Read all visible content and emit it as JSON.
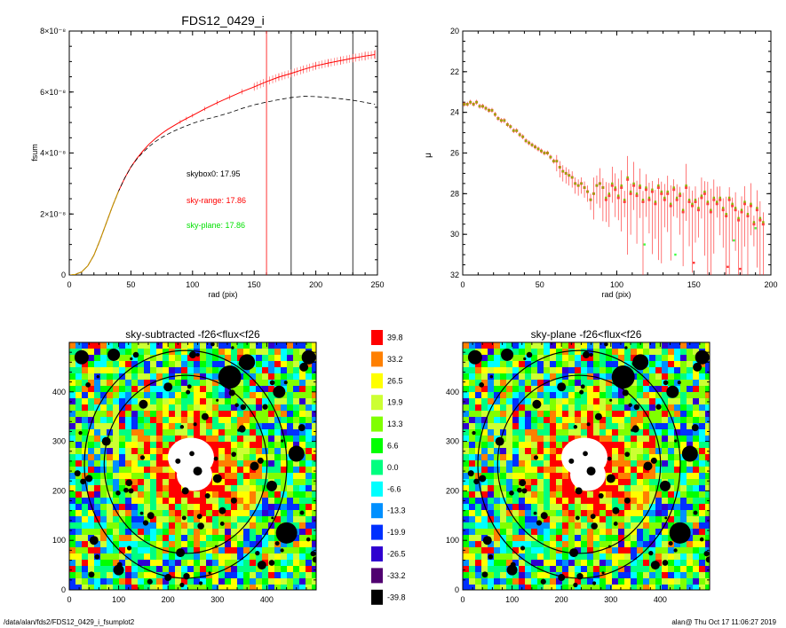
{
  "chart_data": [
    {
      "type": "line",
      "title": "FDS12_0429_i",
      "xlabel": "rad (pix)",
      "ylabel": "fsum",
      "xlim": [
        0,
        250
      ],
      "ylim": [
        0,
        8e-08
      ],
      "x_ticks": [
        "0",
        "50",
        "100",
        "150",
        "200",
        "250"
      ],
      "y_ticks": [
        "0",
        "2×10⁻⁸",
        "4×10⁻⁸",
        "6×10⁻⁸",
        "8×10⁻⁸"
      ],
      "x": [
        1,
        5,
        10,
        15,
        20,
        25,
        30,
        35,
        40,
        45,
        50,
        55,
        60,
        65,
        70,
        75,
        80,
        85,
        90,
        95,
        100,
        110,
        120,
        130,
        140,
        150,
        160,
        170,
        180,
        190,
        200,
        210,
        220,
        230,
        240,
        248
      ],
      "series": [
        {
          "values": [
            0,
            0.2,
            1.0,
            3.0,
            6.5,
            11.5,
            17,
            22.5,
            27.5,
            31.8,
            35.4,
            38.3,
            40.8,
            43.0,
            44.8,
            46.4,
            47.8,
            49.0,
            50.2,
            51.3,
            52.3,
            54.5,
            56.5,
            58.3,
            60.1,
            61.7,
            63.4,
            64.9,
            66.1,
            67.4,
            68.6,
            69.5,
            70.3,
            71.1,
            71.8,
            72.3
          ],
          "color": "#ff0000",
          "style": "solid",
          "error_bars": true
        },
        {
          "values": [
            0,
            0.2,
            1.0,
            3.0,
            6.5,
            11.5,
            17,
            22.5,
            27.5,
            31.8,
            35.4,
            38.1,
            40.3,
            42.2,
            43.8,
            45.1,
            46.2,
            47.2,
            48.1,
            48.9,
            49.7,
            51.0,
            52.0,
            53.2,
            54.6,
            55.8,
            56.7,
            57.5,
            58.2,
            58.6,
            58.5,
            58.2,
            57.8,
            57.3,
            56.6,
            56.0
          ],
          "color": "#000000",
          "style": "dashed"
        }
      ],
      "vertical_lines": [
        {
          "x": 160,
          "color": "#ff0000"
        },
        {
          "x": 180,
          "color": "#000000"
        },
        {
          "x": 230,
          "color": "#000000"
        }
      ],
      "annotations": [
        {
          "text": "skybox0: 17.95",
          "color": "#000000"
        },
        {
          "text": "sky-range: 17.86",
          "color": "#ff0000"
        },
        {
          "text": "sky-plane: 17.86",
          "color": "#00e000"
        }
      ]
    },
    {
      "type": "scatter",
      "xlabel": "rad (pix)",
      "ylabel": "μ",
      "xlim": [
        0,
        200
      ],
      "ylim": [
        32,
        20
      ],
      "y_inverted": true,
      "x_ticks": [
        "0",
        "50",
        "100",
        "150",
        "200"
      ],
      "y_ticks": [
        "20",
        "22",
        "24",
        "26",
        "28",
        "30",
        "32"
      ],
      "x": [
        1,
        3,
        5,
        7,
        9,
        11,
        13,
        15,
        17,
        19,
        21,
        23,
        25,
        27,
        29,
        31,
        33,
        35,
        37,
        39,
        41,
        43,
        45,
        47,
        49,
        51,
        53,
        55,
        57,
        59,
        61,
        63,
        65,
        67,
        69,
        71,
        73,
        75,
        77,
        79,
        81,
        83,
        85,
        87,
        89,
        91,
        93,
        95,
        97,
        99,
        101,
        103,
        105,
        107,
        109,
        111,
        113,
        115,
        117,
        119,
        121,
        123,
        125,
        127,
        129,
        131,
        133,
        135,
        137,
        139,
        141,
        143,
        145,
        147,
        149,
        151,
        153,
        155,
        157,
        159,
        161,
        163,
        165,
        167,
        169,
        171,
        173,
        175,
        177,
        179,
        181,
        183,
        185,
        187,
        189,
        191,
        193,
        195
      ],
      "series": [
        {
          "values": [
            23.6,
            23.6,
            23.5,
            23.6,
            23.5,
            23.7,
            23.7,
            23.8,
            23.9,
            23.9,
            24.1,
            24.3,
            24.4,
            24.4,
            24.6,
            24.7,
            24.9,
            24.9,
            25.1,
            25.2,
            25.4,
            25.5,
            25.6,
            25.7,
            25.8,
            25.9,
            26.0,
            26.0,
            26.2,
            26.4,
            26.4,
            26.7,
            26.9,
            27.0,
            27.1,
            27.2,
            27.5,
            27.6,
            27.5,
            27.7,
            27.9,
            28.3,
            28.0,
            27.6,
            27.5,
            27.7,
            28.3,
            28.1,
            27.6,
            27.8,
            28.2,
            27.7,
            28.4,
            27.3,
            28.0,
            27.6,
            28.1,
            27.7,
            28.4,
            27.8,
            28.3,
            27.9,
            28.5,
            27.7,
            28.0,
            28.3,
            28.0,
            28.6,
            27.8,
            28.3,
            28.1,
            28.9,
            27.7,
            28.4,
            28.6,
            28.4,
            28.8,
            28.2,
            28.0,
            28.5,
            28.9,
            28.3,
            28.5,
            28.3,
            28.8,
            29.1,
            28.3,
            28.6,
            28.8,
            29.3,
            28.9,
            28.5,
            29.1,
            28.6,
            29.5,
            28.8,
            29.3,
            29.5
          ],
          "color": "#ff0000",
          "marker": "square",
          "error_bars": true
        },
        {
          "values": [
            23.6,
            23.6,
            23.5,
            23.6,
            23.5,
            23.7,
            23.7,
            23.8,
            23.9,
            23.9,
            24.1,
            24.3,
            24.4,
            24.4,
            24.6,
            24.7,
            24.9,
            24.9,
            25.1,
            25.2,
            25.4,
            25.5,
            25.6,
            25.7,
            25.8,
            25.9,
            26.0,
            26.0,
            26.2,
            26.4,
            26.4,
            26.7,
            26.9,
            27.0,
            27.1,
            27.2,
            27.5,
            27.6,
            27.5,
            27.7,
            27.9,
            28.3,
            28.0,
            27.6,
            27.5,
            27.7,
            28.2,
            28.0,
            27.5,
            27.7,
            28.1,
            27.6,
            28.3,
            27.2,
            27.9,
            27.5,
            28.0,
            27.6,
            28.3,
            27.7,
            28.2,
            27.8,
            28.4,
            27.6,
            27.9,
            28.2,
            27.9,
            28.5,
            27.7,
            28.2,
            28.0,
            28.8,
            27.6,
            28.3,
            28.5,
            28.3,
            28.7,
            28.1,
            27.9,
            28.4,
            28.8,
            28.2,
            28.4,
            28.2,
            28.7,
            29.0,
            28.2,
            28.5,
            28.7,
            29.2,
            28.8,
            28.4,
            29.0,
            28.5,
            29.4,
            28.7,
            29.2,
            29.4
          ],
          "color": "#80c000",
          "marker": "square"
        }
      ]
    },
    {
      "type": "heatmap",
      "title": "sky-subtracted -f26<flux<f26",
      "xlim": [
        0,
        500
      ],
      "ylim": [
        0,
        500
      ],
      "x_ticks": [
        "0",
        "100",
        "200",
        "300",
        "400"
      ],
      "y_ticks": [
        "0",
        "100",
        "200",
        "300",
        "400"
      ]
    },
    {
      "type": "heatmap",
      "title": "sky-plane -f26<flux<f26",
      "xlim": [
        0,
        500
      ],
      "ylim": [
        0,
        500
      ],
      "x_ticks": [
        "0",
        "100",
        "200",
        "300",
        "400"
      ],
      "y_ticks": [
        "0",
        "100",
        "200",
        "300",
        "400"
      ]
    }
  ],
  "colorbar": {
    "labels": [
      "39.8",
      "33.2",
      "26.5",
      "19.9",
      "13.3",
      "6.6",
      "0.0",
      "-6.6",
      "-13.3",
      "-19.9",
      "-26.5",
      "-33.2",
      "-39.8"
    ],
    "colors": [
      "#ff0000",
      "#ff8000",
      "#ffff00",
      "#ccff33",
      "#80ff00",
      "#00ff00",
      "#00ff80",
      "#00ffff",
      "#0090ff",
      "#0030ff",
      "#3000d0",
      "#500070",
      "#000000"
    ]
  },
  "footer": {
    "left": "/data/alan/fds2/FDS12_0429_i_fsumplot2",
    "right": "alan@  Thu Oct 17 11:06:27 2019"
  }
}
